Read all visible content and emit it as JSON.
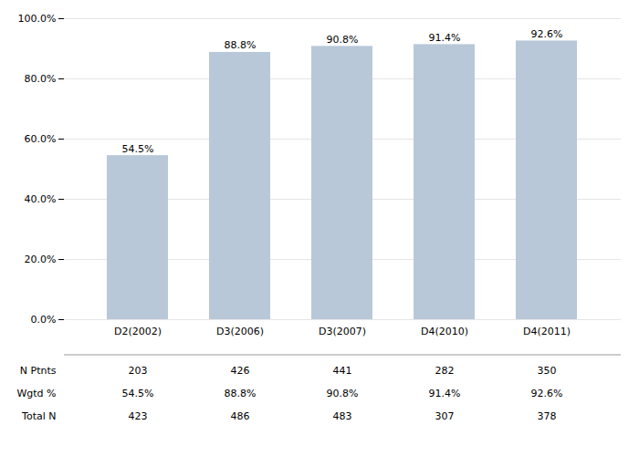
{
  "chart_data": {
    "type": "bar",
    "categories": [
      "D2(2002)",
      "D3(2006)",
      "D3(2007)",
      "D4(2010)",
      "D4(2011)"
    ],
    "values": [
      54.5,
      88.8,
      90.8,
      91.4,
      92.6
    ],
    "value_labels": [
      "54.5%",
      "88.8%",
      "90.8%",
      "91.4%",
      "92.6%"
    ],
    "data_labels": true,
    "color": "#b8c8d8",
    "ylim": [
      0,
      100
    ],
    "yticks": [
      {
        "value": 0,
        "label": "0.0%"
      },
      {
        "value": 20,
        "label": "20.0%"
      },
      {
        "value": 40,
        "label": "40.0%"
      },
      {
        "value": 60,
        "label": "60.0%"
      },
      {
        "value": 80,
        "label": "80.0%"
      },
      {
        "value": 100,
        "label": "100.0%"
      }
    ],
    "grid": true,
    "table": [
      {
        "label": "N Ptnts",
        "values": [
          203,
          426,
          441,
          282,
          350
        ]
      },
      {
        "label": "Wgtd %",
        "values": [
          54.5,
          88.8,
          90.8,
          91.4,
          92.6
        ],
        "value_labels": [
          "54.5%",
          "88.8%",
          "90.8%",
          "91.4%",
          "92.6%"
        ]
      },
      {
        "label": "Total N",
        "values": [
          423,
          486,
          483,
          307,
          378
        ]
      }
    ]
  }
}
